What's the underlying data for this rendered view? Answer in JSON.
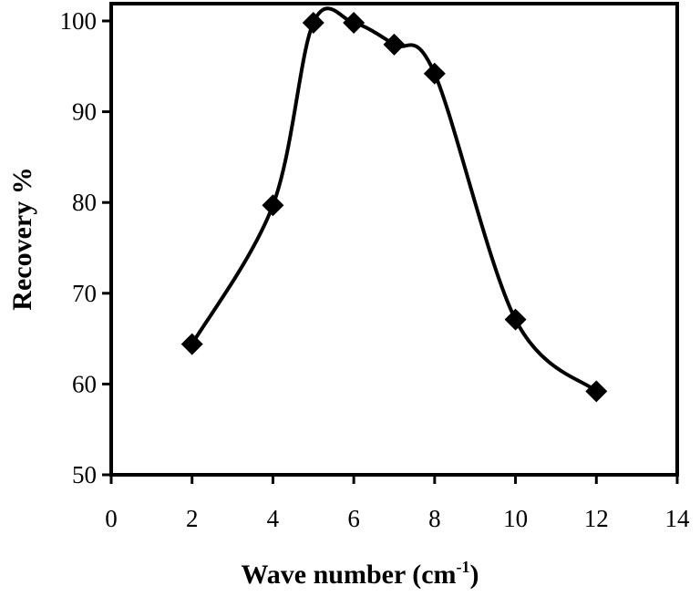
{
  "chart_data": {
    "type": "line",
    "xlabel": "Wave number (cm",
    "xlabel_sup": "-1",
    "xlabel_suffix": ")",
    "ylabel": "Recovery %",
    "xlim": [
      0,
      14
    ],
    "ylim": [
      50,
      100
    ],
    "x_ticks": [
      "0",
      "2",
      "4",
      "6",
      "8",
      "10",
      "12",
      "14"
    ],
    "y_ticks": [
      "50",
      "60",
      "70",
      "80",
      "90",
      "100"
    ],
    "grid": false,
    "legend": "none",
    "series": [
      {
        "marker": "diamond",
        "smooth": true,
        "color": "#000000",
        "x": [
          2,
          4,
          5,
          6,
          7,
          8,
          10,
          12
        ],
        "y": [
          64.4,
          79.7,
          99.8,
          99.8,
          97.4,
          94.2,
          67.1,
          59.2
        ]
      }
    ]
  }
}
